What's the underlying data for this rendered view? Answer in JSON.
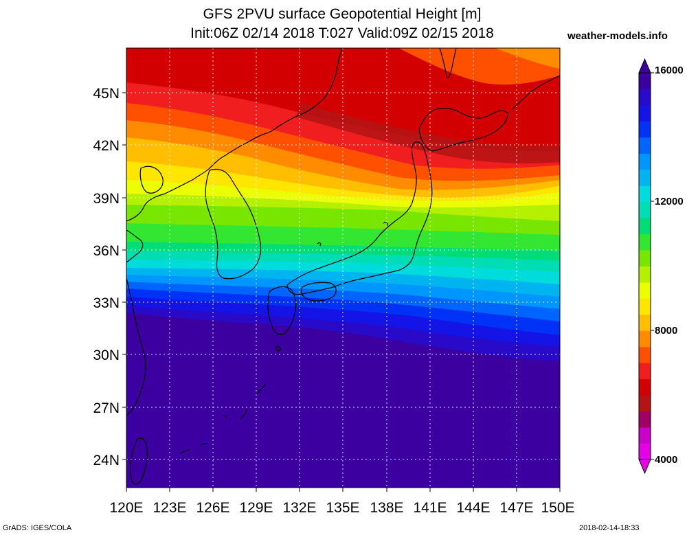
{
  "header": {
    "title_line1": "GFS 2PVU surface Geopotential Height [m]",
    "title_line2": "Init:06Z 02/14 2018 T:027 Valid:09Z 02/15 2018",
    "site": "weather-models.info"
  },
  "axes": {
    "lat_labels": [
      "45N",
      "42N",
      "39N",
      "36N",
      "33N",
      "30N",
      "27N",
      "24N"
    ],
    "lon_labels": [
      "120E",
      "123E",
      "126E",
      "129E",
      "132E",
      "135E",
      "138E",
      "141E",
      "144E",
      "147E",
      "150E"
    ]
  },
  "colorbar": {
    "labels": [
      "16000",
      "12000",
      "8000",
      "4000"
    ],
    "colors": [
      "#e600e6",
      "#c800c8",
      "#a00064",
      "#b41414",
      "#d20000",
      "#f01e1e",
      "#ff5000",
      "#ff8c00",
      "#ffbe00",
      "#ffe600",
      "#ebff00",
      "#b4f000",
      "#78e600",
      "#32e632",
      "#00dc78",
      "#00dcb4",
      "#00dcdc",
      "#00b4f0",
      "#0096ff",
      "#0064ff",
      "#0032f5",
      "#1414e6",
      "#280ac8",
      "#3c00a0"
    ]
  },
  "footer": {
    "left": "GrADS: IGES/COLA",
    "right": "2018-02-14-18:33"
  }
}
